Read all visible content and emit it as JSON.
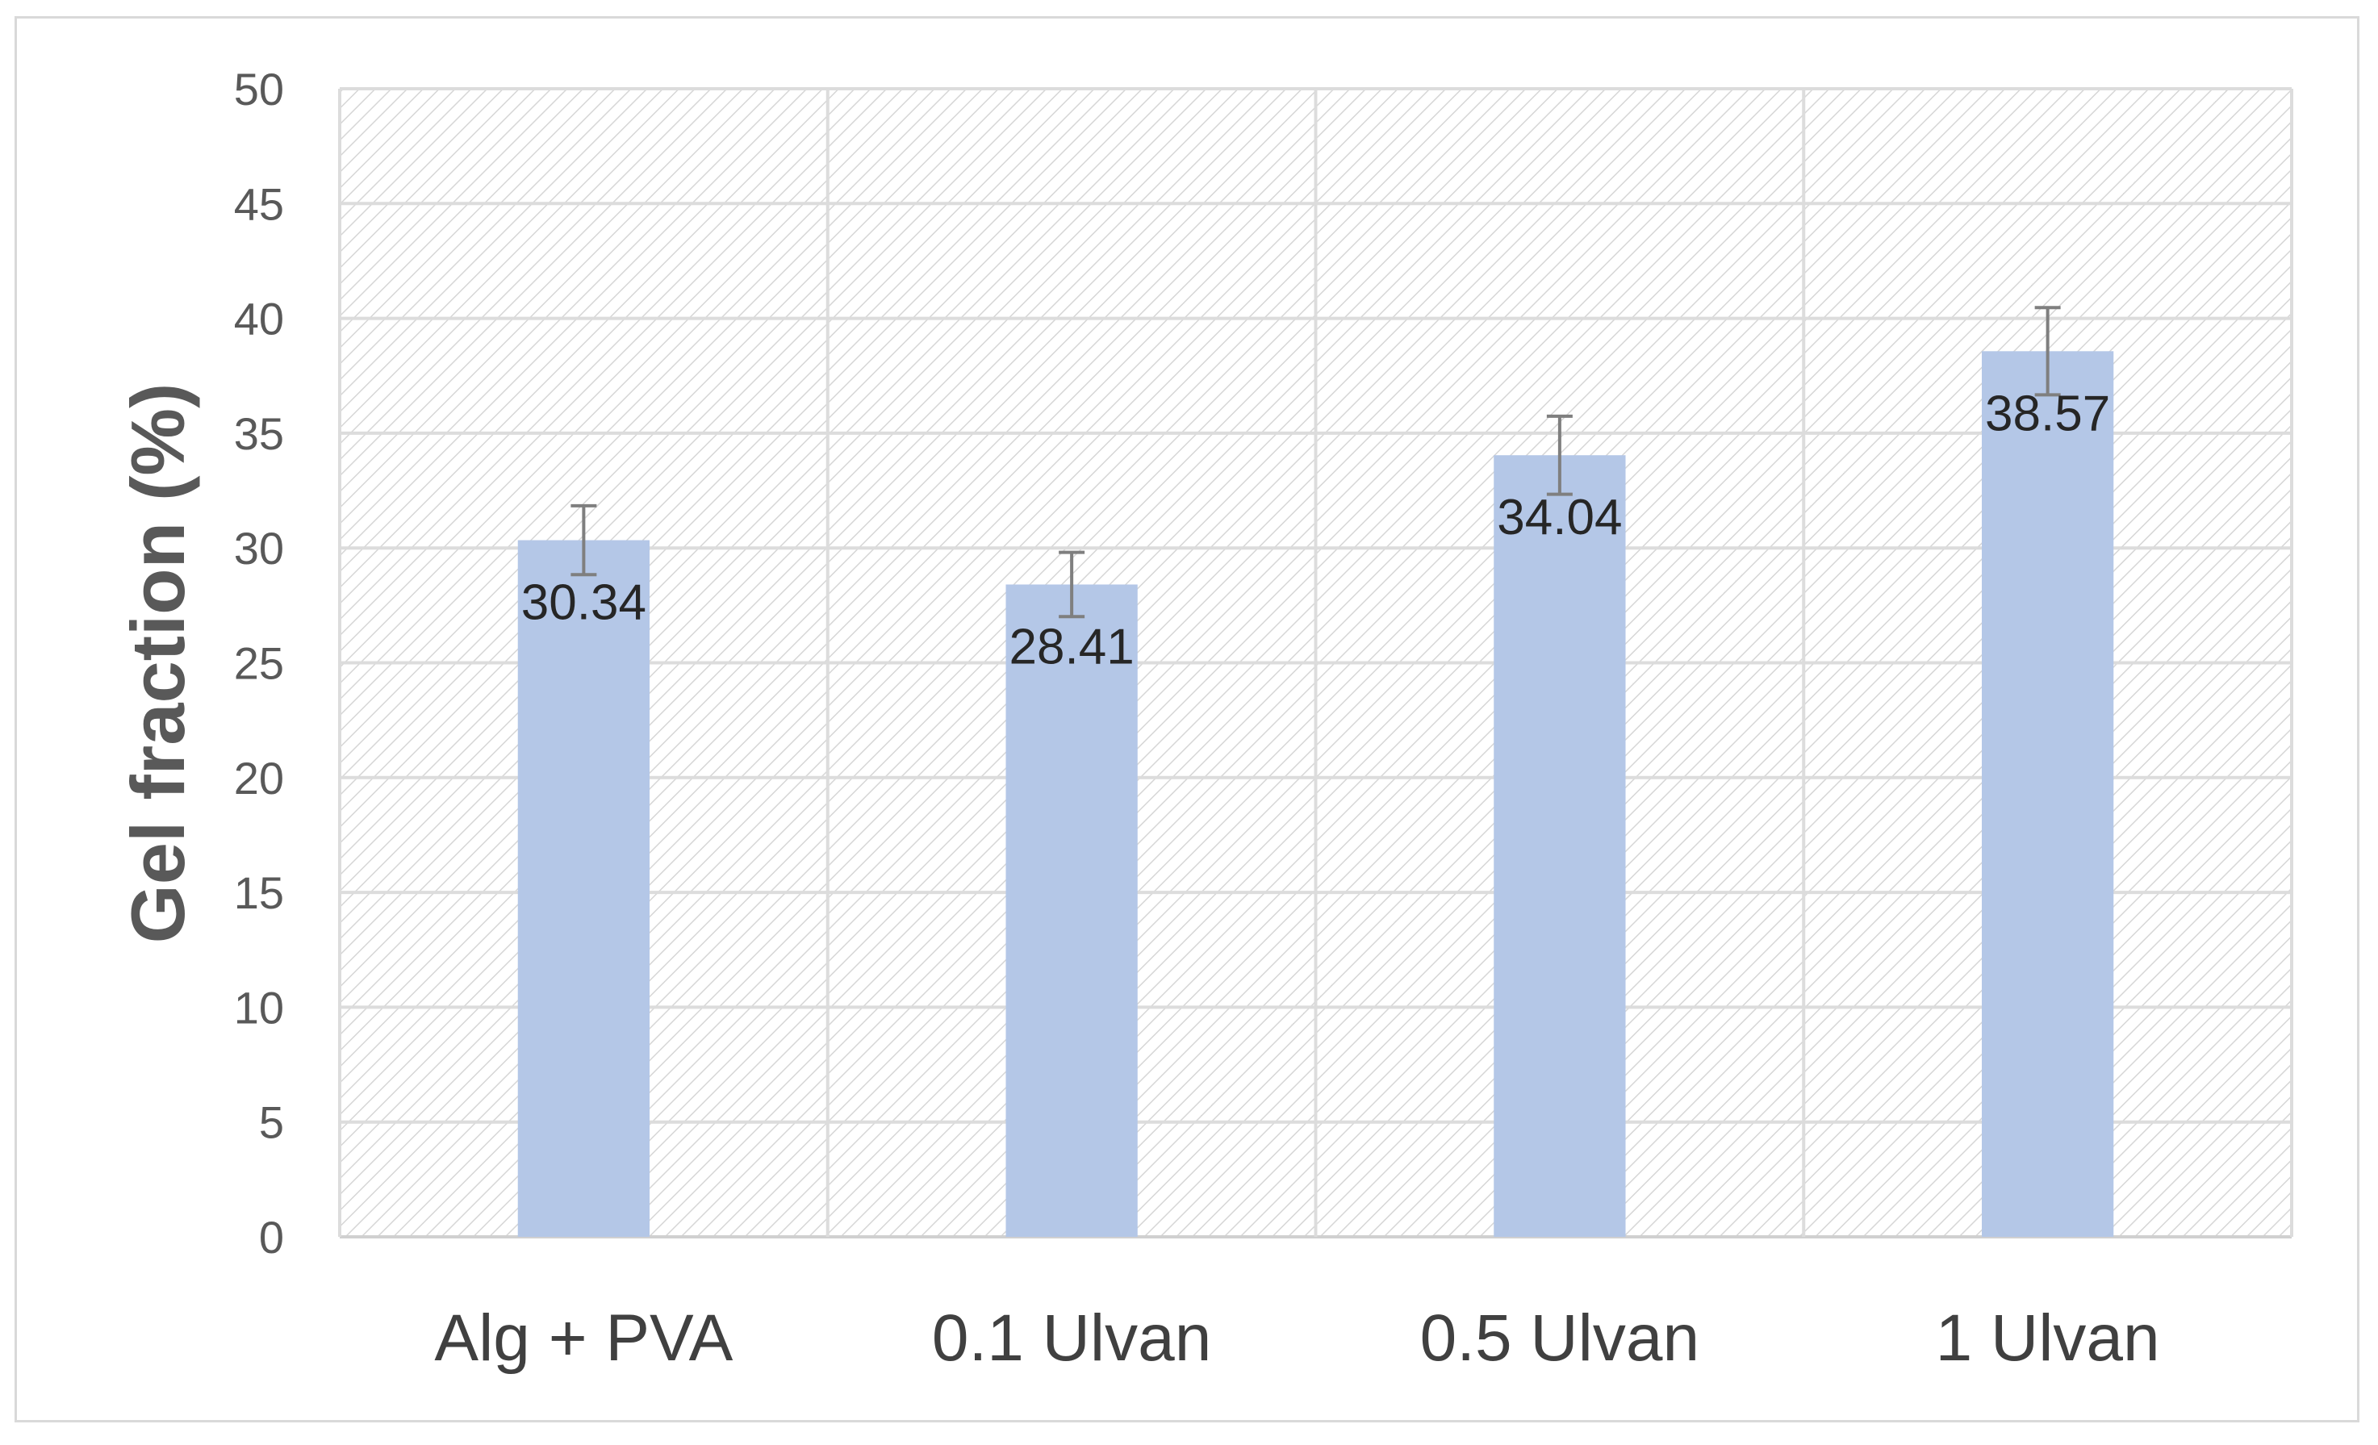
{
  "chart_data": {
    "type": "bar",
    "title": "",
    "xlabel": "",
    "ylabel": "Gel fraction (%)",
    "categories": [
      "Alg + PVA",
      "0.1 Ulvan",
      "0.5 Ulvan",
      "1 Ulvan"
    ],
    "series": [
      {
        "values": [
          30.34,
          28.41,
          34.04,
          38.57
        ],
        "error": [
          1.5,
          1.4,
          1.7,
          1.9
        ],
        "data_labels": [
          "30.34",
          "28.41",
          "34.04",
          "38.57"
        ],
        "color": "#b4c7e7"
      }
    ],
    "ylim": [
      0,
      50
    ],
    "yticks": [
      "0",
      "5",
      "10",
      "15",
      "20",
      "25",
      "30",
      "35",
      "40",
      "45",
      "50"
    ],
    "grid": true,
    "plot_background": "hatched",
    "legend": "none"
  }
}
